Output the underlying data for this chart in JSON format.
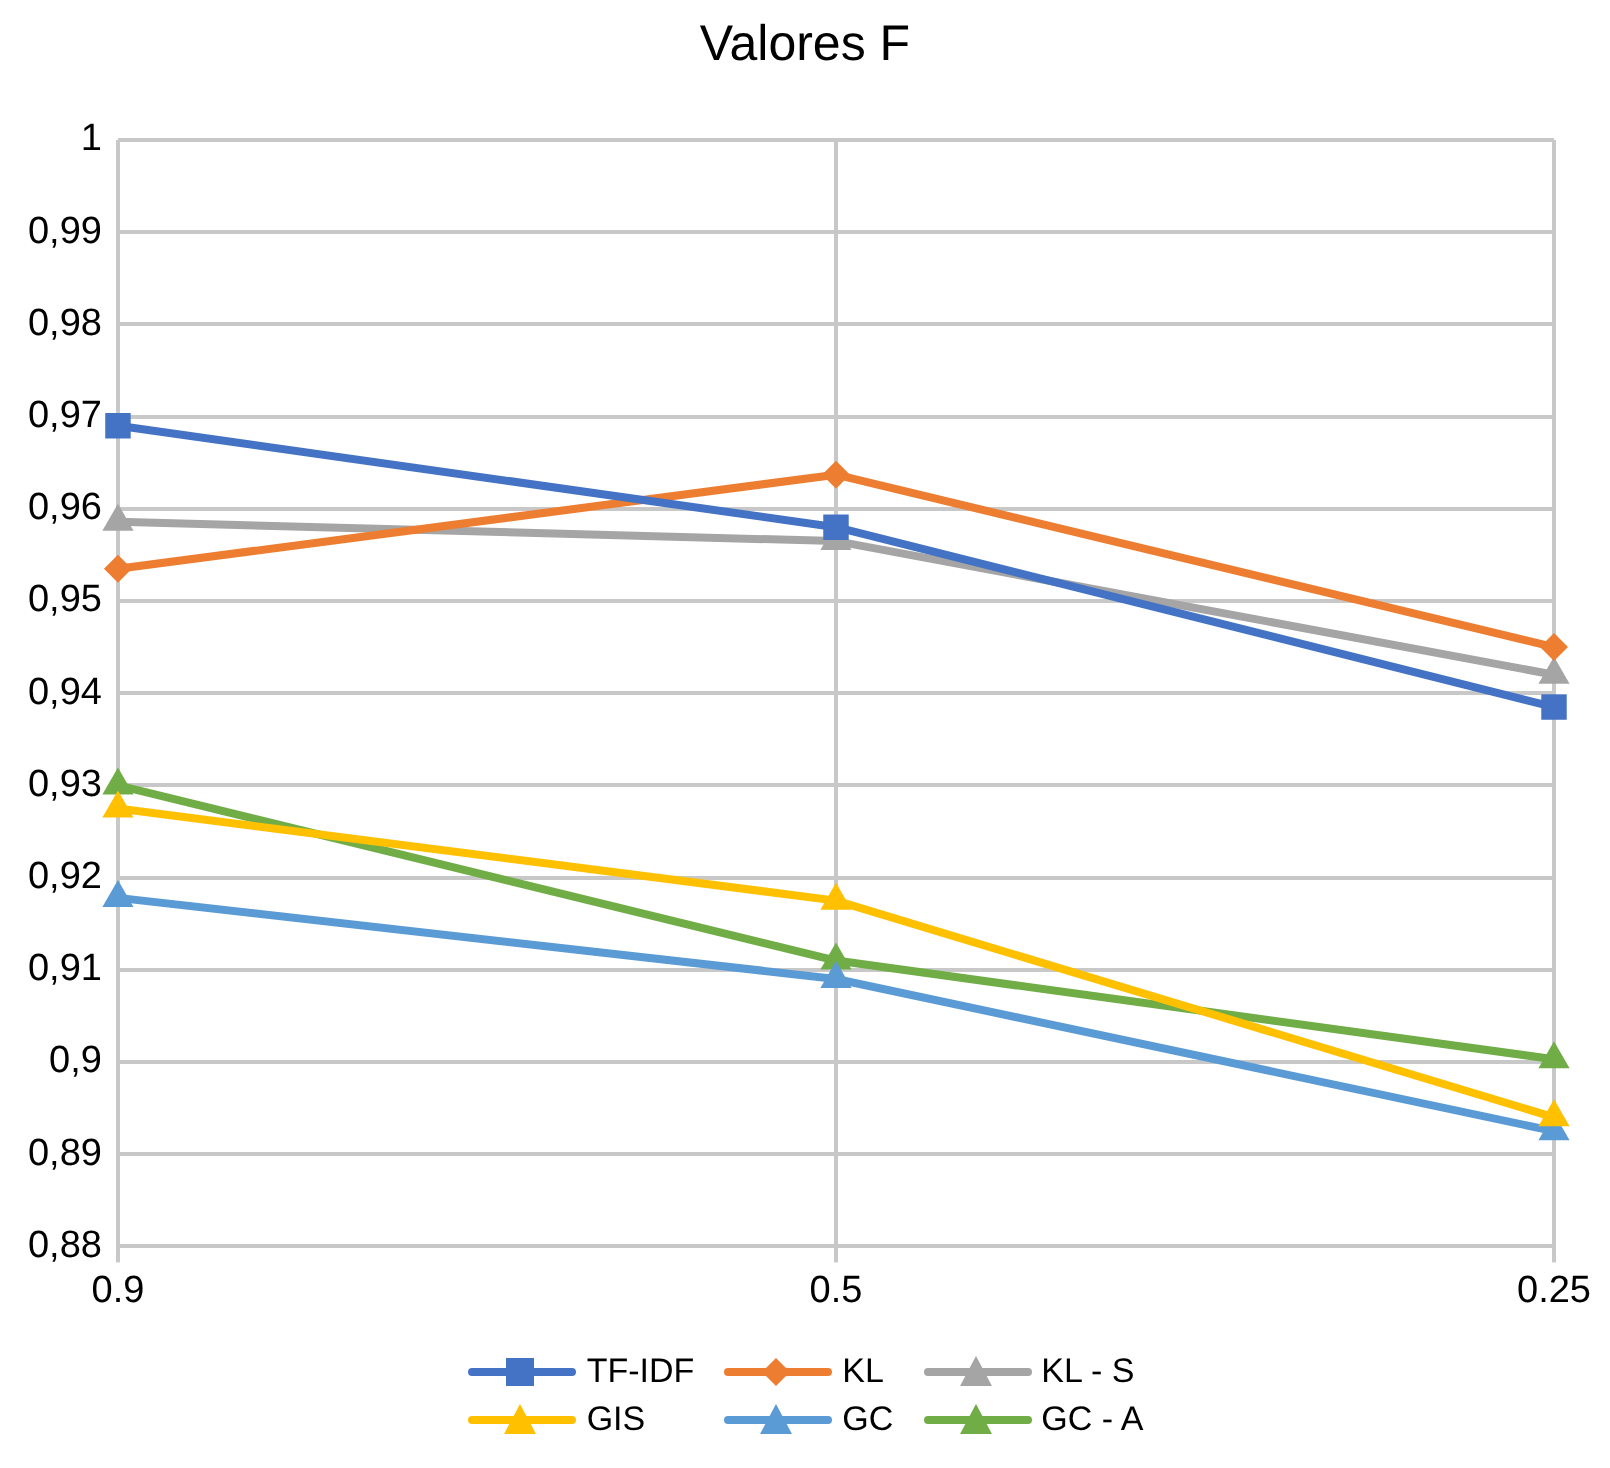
{
  "chart_data": {
    "type": "line",
    "title": "Valores F",
    "categories": [
      "0.9",
      "0.5",
      "0.25"
    ],
    "series": [
      {
        "name": "TF-IDF",
        "color": "#4472c4",
        "marker": "square",
        "values": [
          0.969,
          0.958,
          0.9385
        ]
      },
      {
        "name": "KL",
        "color": "#ed7d31",
        "marker": "diamond",
        "values": [
          0.9535,
          0.9637,
          0.945
        ]
      },
      {
        "name": "KL - S",
        "color": "#a5a5a5",
        "marker": "triangle",
        "values": [
          0.9586,
          0.9565,
          0.942
        ]
      },
      {
        "name": "GIS",
        "color": "#ffc000",
        "marker": "triangle",
        "values": [
          0.9275,
          0.9175,
          0.894
        ]
      },
      {
        "name": "GC",
        "color": "#5b9bd5",
        "marker": "triangle",
        "values": [
          0.9178,
          0.909,
          0.8925
        ]
      },
      {
        "name": "GC - A",
        "color": "#70ad47",
        "marker": "triangle",
        "values": [
          0.93,
          0.911,
          0.9003
        ]
      }
    ],
    "ylim": [
      0.88,
      1
    ],
    "yticks": [
      {
        "value": 0.88,
        "label": "0,88"
      },
      {
        "value": 0.89,
        "label": "0,89"
      },
      {
        "value": 0.9,
        "label": "0,9"
      },
      {
        "value": 0.91,
        "label": "0,91"
      },
      {
        "value": 0.92,
        "label": "0,92"
      },
      {
        "value": 0.93,
        "label": "0,93"
      },
      {
        "value": 0.94,
        "label": "0,94"
      },
      {
        "value": 0.95,
        "label": "0,95"
      },
      {
        "value": 0.96,
        "label": "0,96"
      },
      {
        "value": 0.97,
        "label": "0,97"
      },
      {
        "value": 0.98,
        "label": "0,98"
      },
      {
        "value": 0.99,
        "label": "0,99"
      },
      1
    ],
    "grid": true,
    "legend": "bottom",
    "line_style": "solid"
  }
}
